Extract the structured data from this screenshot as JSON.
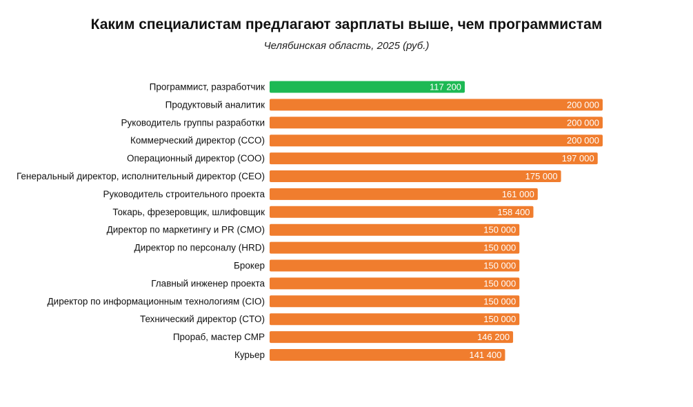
{
  "chart_data": {
    "type": "bar",
    "orientation": "horizontal",
    "title": "Каким специалистам предлагают зарплаты выше, чем программистам",
    "subtitle": "Челябинская область, 2025 (руб.)",
    "xlabel": "",
    "ylabel": "",
    "xlim": [
      0,
      200000
    ],
    "grid": false,
    "legend": "none",
    "categories": [
      "Программист, разработчик",
      "Продуктовый аналитик",
      "Руководитель группы разработки",
      "Коммерческий директор (CCO)",
      "Операционный директор (COO)",
      "Генеральный директор, исполнительный директор (CEO)",
      "Руководитель строительного проекта",
      "Токарь, фрезеровщик, шлифовщик",
      "Директор по маркетингу и PR (CMO)",
      "Директор по персоналу (HRD)",
      "Брокер",
      "Главный инженер проекта",
      "Директор по информационным технологиям (CIO)",
      "Технический директор (CTO)",
      "Прораб, мастер СМР",
      "Курьер"
    ],
    "values": [
      117200,
      200000,
      200000,
      200000,
      197000,
      175000,
      161000,
      158400,
      150000,
      150000,
      150000,
      150000,
      150000,
      150000,
      146200,
      141400
    ],
    "value_labels": [
      "117 200",
      "200 000",
      "200 000",
      "200 000",
      "197 000",
      "175 000",
      "161 000",
      "158 400",
      "150 000",
      "150 000",
      "150 000",
      "150 000",
      "150 000",
      "150 000",
      "146 200",
      "141 400"
    ],
    "colors": {
      "highlight": "#1db954",
      "default": "#f07d2e"
    },
    "highlight_index": 0
  }
}
